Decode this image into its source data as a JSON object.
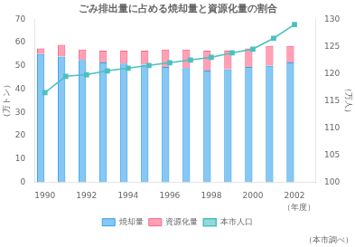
{
  "chart_data": {
    "type": "bar",
    "title": "ごみ排出量に占める焼却量と資源化量の割合",
    "xlabel": "（年度）",
    "ylabel": "（万トン）",
    "y2label": "（万人）",
    "annotations": [
      "（本市調べ）"
    ],
    "x": [
      1990,
      1991,
      1992,
      1993,
      1994,
      1995,
      1996,
      1997,
      1998,
      1999,
      2000,
      2001,
      2002
    ],
    "series": [
      {
        "name": "焼却量",
        "type": "bar",
        "values": [
          55.0,
          54.0,
          52.5,
          51.5,
          51.0,
          50.5,
          49.5,
          49.0,
          48.0,
          48.5,
          49.5,
          50.0,
          51.5
        ]
      },
      {
        "name": "資源化量",
        "type": "bar",
        "values": [
          2.5,
          5.0,
          4.5,
          5.0,
          5.5,
          6.0,
          7.5,
          8.0,
          8.5,
          8.0,
          8.0,
          8.5,
          7.0
        ]
      },
      {
        "name": "本市人口",
        "type": "line",
        "axis": "y2",
        "marker": "square",
        "values": [
          116.5,
          119.5,
          119.8,
          120.5,
          121.0,
          121.5,
          122.0,
          122.5,
          123.0,
          123.8,
          124.5,
          126.5,
          129.0
        ]
      }
    ],
    "stacked": true,
    "xlim": [
      1989.5,
      2003
    ],
    "xticks": [
      1990,
      1992,
      1994,
      1996,
      1998,
      2000,
      2002
    ],
    "ylim": [
      0,
      70
    ],
    "yticks": [
      0,
      10,
      20,
      30,
      40,
      50,
      60,
      70
    ],
    "y2lim": [
      100,
      130
    ],
    "y2ticks": [
      100,
      105,
      110,
      115,
      120,
      125,
      130
    ],
    "legend": "bottom",
    "grid": false
  }
}
